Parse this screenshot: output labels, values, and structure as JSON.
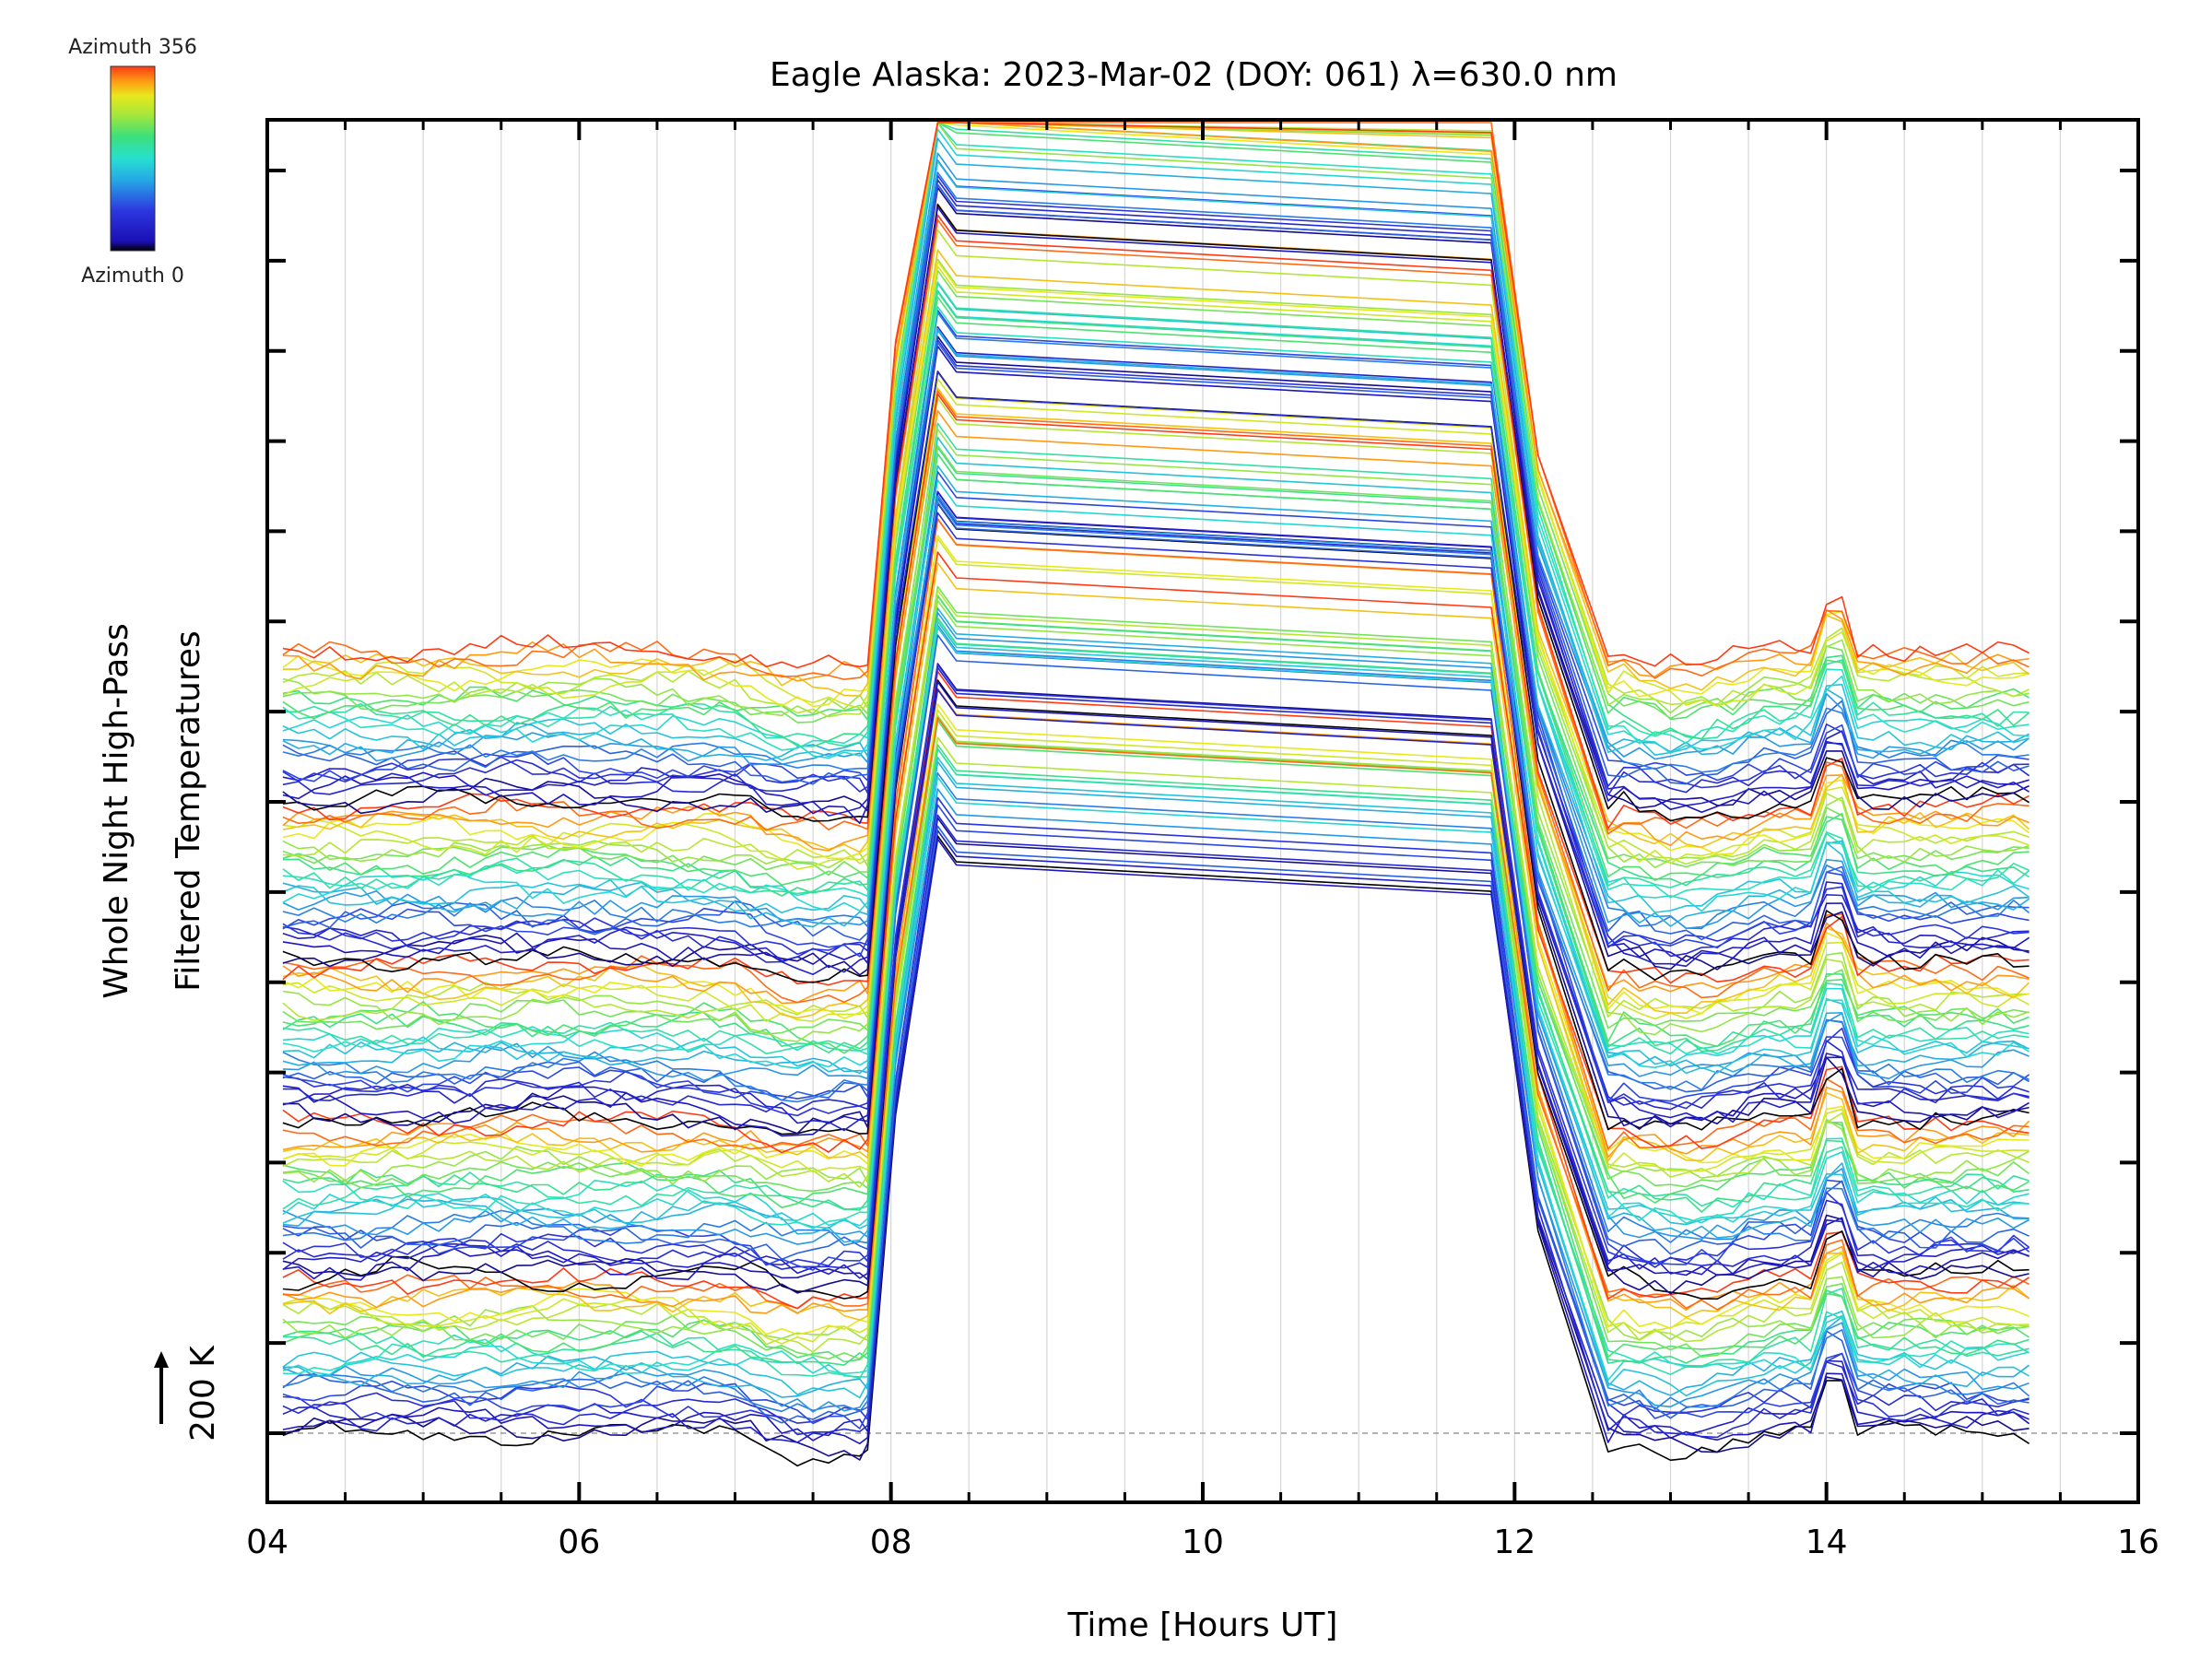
{
  "chart_data": {
    "type": "line",
    "title": "Eagle Alaska: 2023-Mar-02 (DOY: 061) λ=630.0 nm",
    "xlabel": "Time [Hours UT]",
    "ylabel_line1": "Whole Night High-Pass",
    "ylabel_line2": "Filtered Temperatures",
    "scale_label": "200 K",
    "xlim": [
      4,
      16
    ],
    "x_ticks": [
      "04",
      "06",
      "08",
      "10",
      "12",
      "14",
      "16"
    ],
    "x_data_range": [
      4.1,
      15.3
    ],
    "n_series": 130,
    "n_bands": 5,
    "series_per_band": 26,
    "azimuth_range": [
      0,
      356
    ],
    "colorbar": {
      "top_label": "Azimuth 356",
      "bottom_label": "Azimuth 0",
      "colors": [
        "#000000",
        "#1a0fb5",
        "#2d38e0",
        "#26a6e6",
        "#26e0d0",
        "#3de07a",
        "#a8e63a",
        "#e8e81c",
        "#ff9a14",
        "#ff3a14"
      ]
    },
    "gap_features": {
      "rise_start": 7.85,
      "rise_peak": 8.3,
      "plateau_end": 11.85,
      "fall_end": 12.6,
      "spike_time": 14.05
    }
  }
}
